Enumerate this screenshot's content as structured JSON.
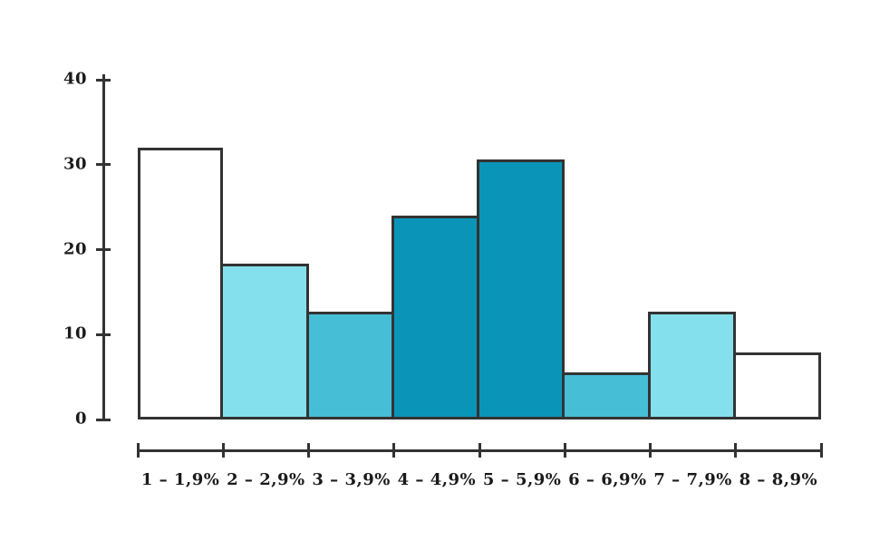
{
  "chart_data": {
    "type": "bar",
    "subtype": "histogram",
    "title": "",
    "xlabel": "",
    "ylabel": "",
    "categories": [
      "1 – 1,9%",
      "2 – 2,9%",
      "3 – 3,9%",
      "4 – 4,9%",
      "5 – 5,9%",
      "6 – 6,9%",
      "7 – 7,9%",
      "8 – 8,9%"
    ],
    "values": [
      32,
      18.3,
      12.7,
      24,
      30.6,
      5.6,
      12.7,
      7.9
    ],
    "bar_colors": [
      "#ffffff",
      "#84e0ec",
      "#46bed6",
      "#0a95b8",
      "#0a95b8",
      "#46bed6",
      "#84e0ec",
      "#ffffff"
    ],
    "outline_color": "#333333",
    "background_color": "#ffffff",
    "yticks": [
      0,
      10,
      20,
      30,
      40
    ],
    "ylim": [
      0,
      40
    ],
    "grid": false,
    "legend": false
  }
}
